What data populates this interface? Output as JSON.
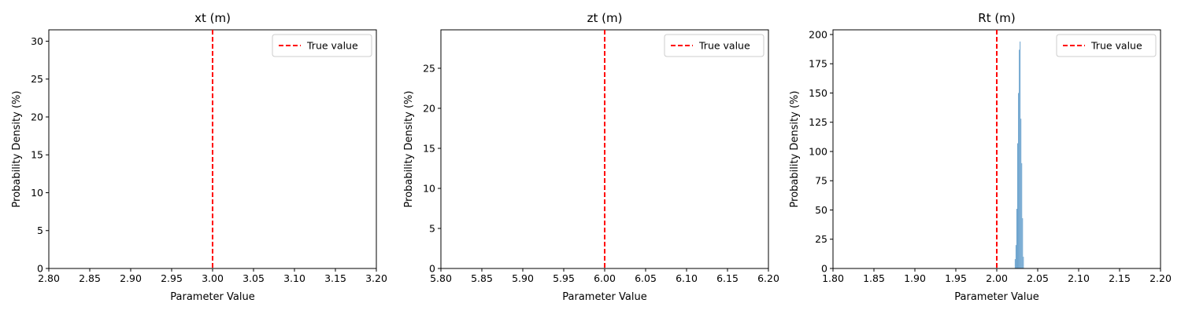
{
  "chart_data": [
    {
      "type": "bar",
      "title": "xt (m)",
      "xlabel": "Parameter Value",
      "ylabel": "Probability Density (%)",
      "xlim": [
        2.8,
        3.2
      ],
      "ylim": [
        0,
        31.5
      ],
      "xticks": [
        "2.80",
        "2.85",
        "2.90",
        "2.95",
        "3.00",
        "3.05",
        "3.10",
        "3.15",
        "3.20"
      ],
      "yticks": [
        "0",
        "5",
        "10",
        "15",
        "20",
        "25",
        "30"
      ],
      "true_value": 3.0,
      "legend": {
        "label": "True value",
        "position": "top-right"
      },
      "bars": []
    },
    {
      "type": "bar",
      "title": "zt (m)",
      "xlabel": "Parameter Value",
      "ylabel": "Probability Density (%)",
      "xlim": [
        5.8,
        6.2
      ],
      "ylim": [
        0,
        29.8
      ],
      "xticks": [
        "5.80",
        "5.85",
        "5.90",
        "5.95",
        "6.00",
        "6.05",
        "6.10",
        "6.15",
        "6.20"
      ],
      "yticks": [
        "0",
        "5",
        "10",
        "15",
        "20",
        "25"
      ],
      "true_value": 6.0,
      "legend": {
        "label": "True value",
        "position": "top-right"
      },
      "bars": []
    },
    {
      "type": "bar",
      "title": "Rt (m)",
      "xlabel": "Parameter Value",
      "ylabel": "Probability Density (%)",
      "xlim": [
        1.8,
        2.2
      ],
      "ylim": [
        0,
        204
      ],
      "xticks": [
        "1.80",
        "1.85",
        "1.90",
        "1.95",
        "2.00",
        "2.05",
        "2.10",
        "2.15",
        "2.20"
      ],
      "yticks": [
        "0",
        "25",
        "50",
        "75",
        "100",
        "125",
        "150",
        "175",
        "200"
      ],
      "true_value": 2.0,
      "legend": {
        "label": "True value",
        "position": "top-right"
      },
      "bars": [
        {
          "x": 2.0225,
          "y": 8
        },
        {
          "x": 2.0235,
          "y": 20
        },
        {
          "x": 2.0245,
          "y": 51
        },
        {
          "x": 2.0255,
          "y": 107
        },
        {
          "x": 2.0265,
          "y": 150
        },
        {
          "x": 2.0275,
          "y": 187
        },
        {
          "x": 2.0285,
          "y": 194
        },
        {
          "x": 2.0295,
          "y": 128
        },
        {
          "x": 2.0305,
          "y": 90
        },
        {
          "x": 2.0315,
          "y": 43
        },
        {
          "x": 2.0325,
          "y": 10
        }
      ],
      "bar_color": "#6fa5cf"
    }
  ],
  "colors": {
    "true_value_line": "#ff0000",
    "histogram": "#6fa5cf"
  }
}
